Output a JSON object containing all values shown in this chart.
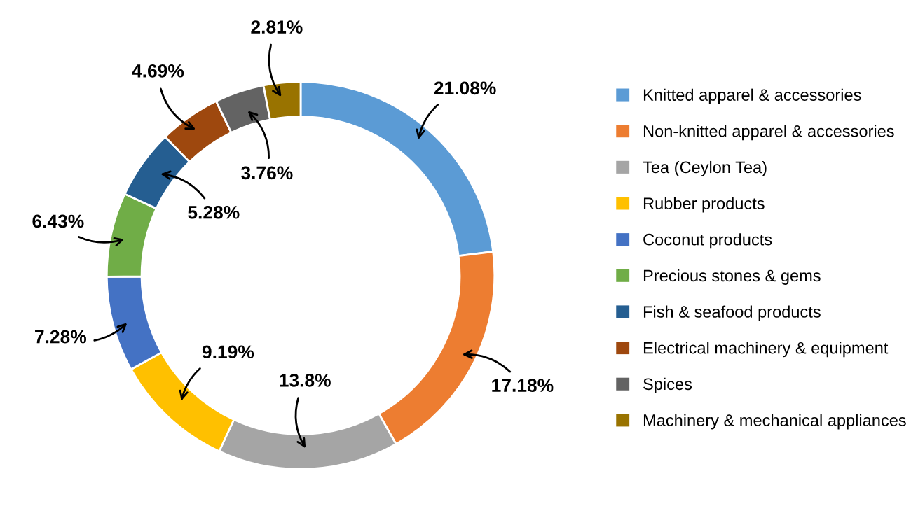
{
  "chart_data": {
    "type": "donut",
    "categories": [
      "Knitted apparel & accessories",
      "Non-knitted apparel & accessories",
      "Tea (Ceylon Tea)",
      "Rubber products",
      "Coconut products",
      "Precious stones & gems",
      "Fish & seafood products",
      "Electrical machinery & equipment",
      "Spices",
      "Machinery & mechanical appliances"
    ],
    "values": [
      21.08,
      17.18,
      13.8,
      9.19,
      7.28,
      6.43,
      5.28,
      4.69,
      3.76,
      2.81
    ],
    "value_labels": [
      "21.08%",
      "17.18%",
      "13.8%",
      "9.19%",
      "7.28%",
      "6.43%",
      "5.28%",
      "4.69%",
      "3.76%",
      "2.81%"
    ],
    "colors": [
      "#5b9bd5",
      "#ed7d31",
      "#a5a5a5",
      "#ffc000",
      "#4472c4",
      "#70ad47",
      "#255e91",
      "#9e480e",
      "#636363",
      "#997300"
    ],
    "legend": "right"
  }
}
